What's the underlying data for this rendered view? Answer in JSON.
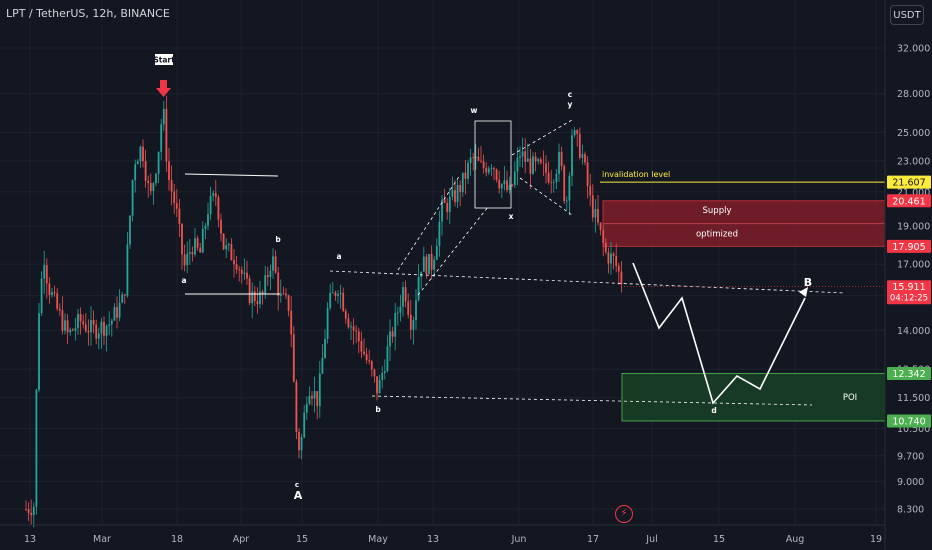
{
  "header": {
    "title": "LPT / TetherUS, 12h, BINANCE",
    "currency": "USDT"
  },
  "chart_data": {
    "type": "candlestick",
    "symbol": "LPT / TetherUS",
    "interval": "12h",
    "exchange": "BINANCE",
    "y_scale": "log",
    "y_ticks": [
      8.3,
      9.0,
      9.7,
      10.5,
      11.5,
      12.5,
      14.0,
      15.5,
      17.0,
      19.0,
      21.0,
      23.0,
      25.0,
      28.0,
      32.0
    ],
    "y_tick_labels": [
      "8.300",
      "9.000",
      "9.700",
      "10.500",
      "11.500",
      "12.500",
      "14.000",
      "15.500",
      "17.000",
      "19.000",
      "21.000",
      "23.000",
      "25.000",
      "28.000",
      "32.000"
    ],
    "x_tick_labels": [
      "13",
      "Mar",
      "18",
      "Apr",
      "15",
      "May",
      "13",
      "Jun",
      "17",
      "Jul",
      "15",
      "Aug",
      "19"
    ],
    "price_labels": [
      {
        "value": "21.607",
        "role": "invalidation"
      },
      {
        "value": "20.461",
        "role": "supply-top"
      },
      {
        "value": "17.905",
        "role": "supply-bottom"
      },
      {
        "value": "15.911",
        "role": "last-price",
        "countdown": "04:12:25"
      },
      {
        "value": "12.342",
        "role": "poi-top"
      },
      {
        "value": "10.740",
        "role": "poi-bottom"
      }
    ],
    "last_price": 15.911,
    "zones": [
      {
        "name": "Supply",
        "label2": "optimized",
        "top": 20.461,
        "bottom": 17.905,
        "color": "#b22833"
      },
      {
        "name": "POI",
        "top": 12.342,
        "bottom": 10.74,
        "color": "#1e5b2d"
      }
    ],
    "levels": [
      {
        "name": "invalidation level",
        "value": 21.607,
        "color": "#ffeb3b"
      }
    ],
    "wave_labels": [
      "Start",
      "a",
      "b",
      "c",
      "A",
      "a",
      "b",
      "w",
      "x",
      "c",
      "y",
      "B",
      "d",
      "POI"
    ],
    "colors": {
      "up": "#26a69a",
      "down": "#ef5350",
      "background": "#131722",
      "grid": "#1e222d"
    }
  }
}
